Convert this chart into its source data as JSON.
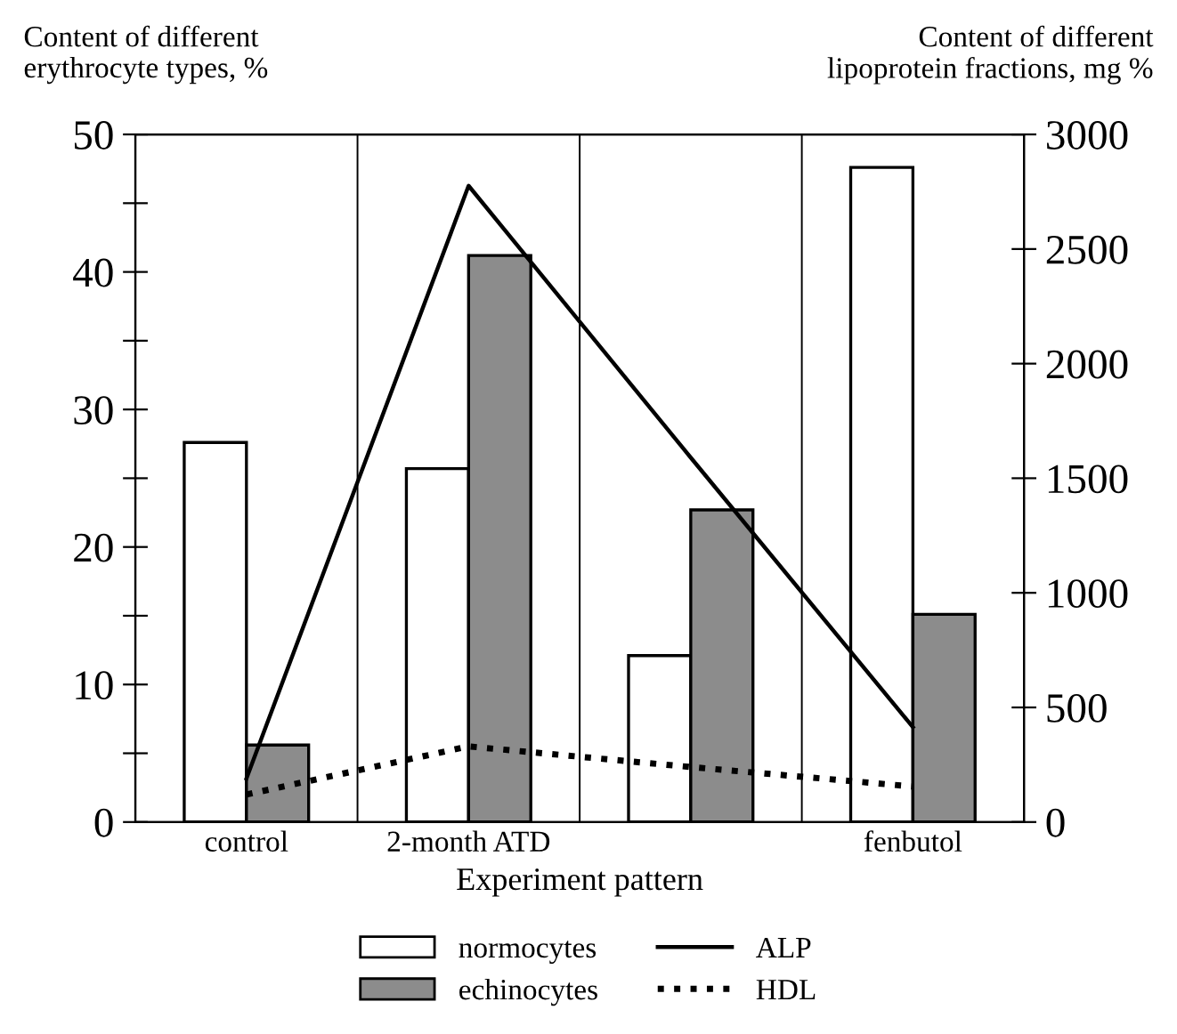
{
  "chart_data": {
    "type": "bar",
    "categories": [
      "control",
      "2-month ATD",
      null,
      "fenbutol"
    ],
    "xlabel": "Experiment pattern",
    "ylabel": "Content of different\nerythrocyte types, %",
    "y2label": "Content of different\nlipoprotein fractions, mg %",
    "series": [
      {
        "name": "normocytes",
        "color": "#ffffff",
        "values": [
          27.6,
          25.7,
          12.1,
          47.6
        ]
      },
      {
        "name": "echinocytes",
        "color": "#8c8c8c",
        "values": [
          5.6,
          41.2,
          22.7,
          15.1
        ]
      },
      {
        "name": "ALP",
        "type": "line",
        "axis": "y2",
        "color": "#000000",
        "line_style": "solid",
        "values": [
          190,
          2776,
          1590,
          414
        ]
      },
      {
        "name": "HDL",
        "type": "line",
        "axis": "y2",
        "color": "#000000",
        "line_style": "dotted",
        "values": [
          120,
          330,
          240,
          155
        ]
      }
    ],
    "ylim": [
      0,
      50
    ],
    "yticks": [
      0,
      {
        "value": 5,
        "label": null
      },
      10,
      {
        "value": 15,
        "label": null
      },
      20,
      {
        "value": 25,
        "label": null
      },
      30,
      {
        "value": 35,
        "label": null
      },
      40,
      {
        "value": 45,
        "label": null
      },
      50
    ],
    "y2lim": [
      0,
      3000
    ],
    "y2ticks": [
      0,
      500,
      1000,
      1500,
      2000,
      2500,
      3000
    ],
    "grid": "x",
    "legend": "bottom"
  }
}
